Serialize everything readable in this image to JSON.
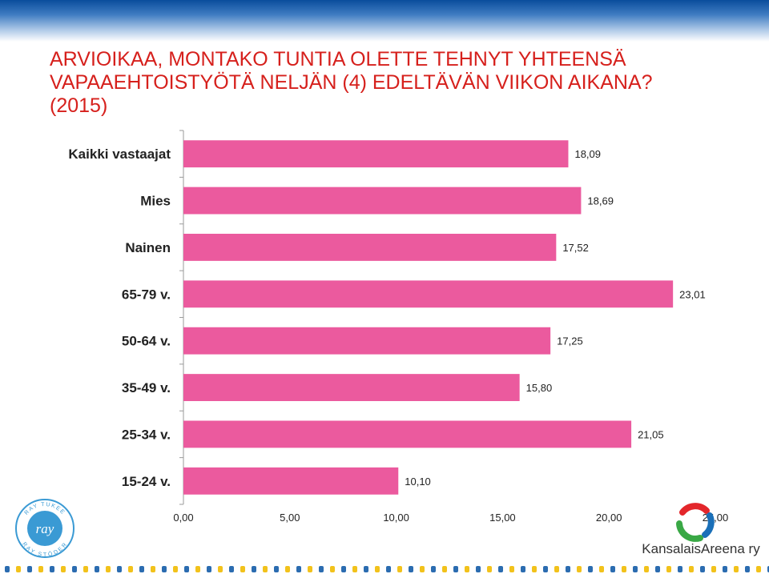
{
  "title": {
    "line1": "ARVIOIKAA, MONTAKO TUNTIA OLETTE TEHNYT YHTEENSÄ",
    "line2": "VAPAAEHTOISTYÖTÄ NELJÄN (4) EDELTÄVÄN VIIKON AIKANA?",
    "line3": "(2015)"
  },
  "chart_data": {
    "type": "bar",
    "orientation": "horizontal",
    "categories": [
      "Kaikki vastaajat",
      "Mies",
      "Nainen",
      "65-79 v.",
      "50-64 v.",
      "35-49 v.",
      "25-34 v.",
      "15-24 v."
    ],
    "values": [
      18.09,
      18.69,
      17.52,
      23.01,
      17.25,
      15.8,
      21.05,
      10.1
    ],
    "value_labels": [
      "18,09",
      "18,69",
      "17,52",
      "23,01",
      "17,25",
      "15,80",
      "21,05",
      "10,10"
    ],
    "xlim": [
      0,
      25
    ],
    "x_ticks": [
      "0,00",
      "5,00",
      "10,00",
      "15,00",
      "20,00",
      "25,00"
    ],
    "bar_color": "#eb5a9e",
    "grid": false,
    "legend": "none"
  },
  "logos": {
    "ray_top": "RAY TUKEE",
    "ray_center": "ray",
    "ray_bottom": "RAY STÖDER",
    "kansalaisareena": "KansalaisAreena ry"
  },
  "colors": {
    "title": "#d6201c",
    "header_band": "#0a4d9c",
    "ray_blue": "#3a9ad4",
    "ka_red": "#e3262b",
    "ka_green": "#39a845",
    "ka_blue": "#1a6fb8",
    "dots_blue": "#2b6cb0",
    "dots_yellow": "#f2c21b"
  }
}
